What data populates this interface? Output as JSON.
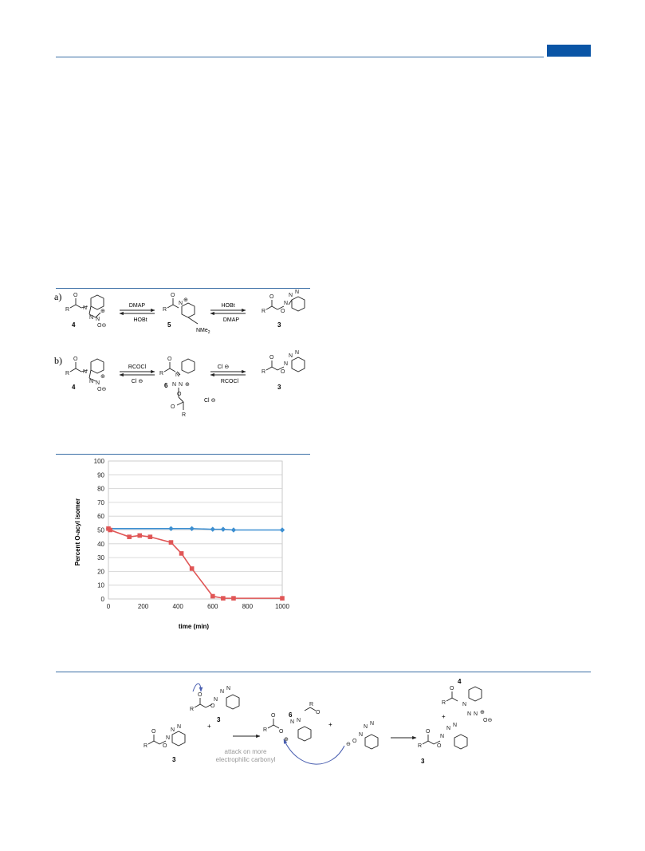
{
  "scheme_a": {
    "label": "a)",
    "reagent1_top": "DMAP",
    "reagent1_bottom": "HOBt",
    "reagent2_top": "HOBt",
    "reagent2_bottom": "DMAP",
    "cmpd_left": "4",
    "cmpd_mid": "5",
    "cmpd_right": "3",
    "nme2": "NMe",
    "nme2_sub": "2"
  },
  "scheme_b": {
    "label": "b)",
    "reagent1_top": "RCOCl",
    "reagent1_bottom": "Cl",
    "reagent2_top": "Cl",
    "reagent2_bottom": "RCOCl",
    "cmpd_left": "4",
    "cmpd_mid": "6",
    "cmpd_right": "3",
    "counterion": "Cl"
  },
  "chart_data": {
    "type": "line",
    "xlabel": "time (min)",
    "ylabel": "Percent O-acyl isomer",
    "xlim": [
      0,
      1000
    ],
    "ylim": [
      0,
      100
    ],
    "x_ticks": [
      0,
      200,
      400,
      600,
      800,
      1000
    ],
    "y_ticks": [
      0,
      10,
      20,
      30,
      40,
      50,
      60,
      70,
      80,
      90,
      100
    ],
    "grid": true,
    "legend": "none",
    "series": [
      {
        "color": "#3d8fd1",
        "marker": "diamond",
        "x": [
          0,
          360,
          480,
          600,
          660,
          720,
          1000
        ],
        "y": [
          51,
          51,
          51,
          50.5,
          50.5,
          50,
          50
        ]
      },
      {
        "color": "#e05656",
        "marker": "square",
        "x": [
          0,
          10,
          120,
          180,
          240,
          360,
          420,
          480,
          600,
          660,
          720,
          1000
        ],
        "y": [
          51,
          50,
          45,
          46,
          45,
          41,
          33,
          22,
          2,
          0.5,
          0.5,
          0.5
        ]
      }
    ]
  },
  "mechanism": {
    "cmpd_3_left": "3",
    "cmpd_3_top": "3",
    "cmpd_6": "6",
    "cmpd_4": "4",
    "cmpd_3_right": "3",
    "plus": "+",
    "annotation_line1": "attack on more",
    "annotation_line2": "electrophilic carbonyl"
  },
  "colors": {
    "rule": "#3b6fa6",
    "tab": "#0a55a6",
    "arrow_blue": "#4a5fb0"
  }
}
